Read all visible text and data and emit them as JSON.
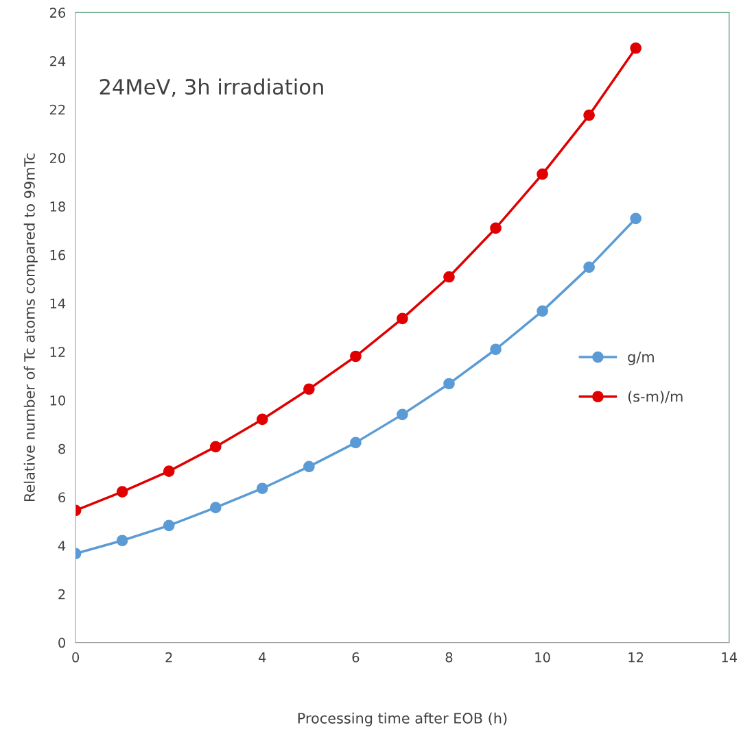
{
  "chart_data": {
    "type": "line",
    "xlabel": "Processing time after EOB (h)",
    "ylabel": "Relative number of Tc atoms compared to 99mTc",
    "annotations": [
      "24MeV, 3h irradiation"
    ],
    "x": [
      0,
      1,
      2,
      3,
      4,
      5,
      6,
      7,
      8,
      9,
      10,
      11,
      12
    ],
    "series": [
      {
        "name": "g/m",
        "color": "#5b9bd5",
        "values": [
          3.67,
          4.21,
          4.83,
          5.57,
          6.36,
          7.26,
          8.25,
          9.41,
          10.68,
          12.1,
          13.68,
          15.49,
          17.5
        ]
      },
      {
        "name": "(s-m)/m",
        "color": "#e00000",
        "values": [
          5.45,
          6.22,
          7.07,
          8.08,
          9.21,
          10.46,
          11.81,
          13.37,
          15.09,
          17.1,
          19.33,
          21.76,
          24.53
        ]
      }
    ],
    "xlim": [
      0,
      14
    ],
    "xticks": [
      0,
      2,
      4,
      6,
      8,
      10,
      12,
      14
    ],
    "ylim": [
      0,
      26
    ],
    "yticks": [
      0,
      2,
      4,
      6,
      8,
      10,
      12,
      14,
      16,
      18,
      20,
      22,
      24,
      26
    ],
    "grid": false,
    "legend": "right",
    "marker": "circle",
    "line_style": "solid"
  }
}
